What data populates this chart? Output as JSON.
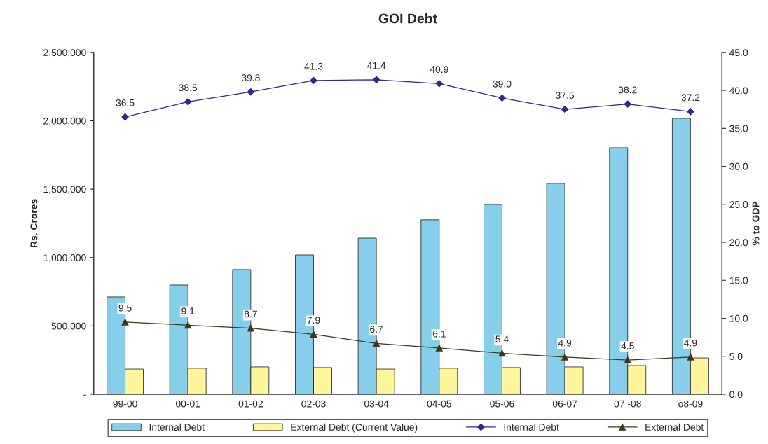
{
  "chart_data": {
    "type": "bar",
    "title": "GOI Debt",
    "ylabel": "Rs. Crores",
    "y2label": "% to GDP",
    "categories": [
      "99-00",
      "00-01",
      "01-02",
      "02-03",
      "03-04",
      "04-05",
      "05-06",
      "06-07",
      "07 -08",
      "o8-09"
    ],
    "series": [
      {
        "name": "Internal Debt",
        "color": "#87ceeb",
        "values": [
          712000,
          799000,
          912000,
          1019000,
          1142000,
          1276000,
          1388000,
          1542000,
          1803000,
          2018000
        ]
      },
      {
        "name": "External Debt (Current Value)",
        "color": "#fff59a",
        "values": [
          184000,
          190000,
          200000,
          195000,
          184000,
          190000,
          195000,
          200000,
          210000,
          266000
        ]
      },
      {
        "name": "Internal Debt",
        "type": "line",
        "axis": "y2",
        "color": "#2b2b8c",
        "marker": "diamond",
        "values": [
          36.5,
          38.5,
          39.8,
          41.3,
          41.4,
          40.9,
          39.0,
          37.5,
          38.2,
          37.2
        ],
        "value_labels": [
          "36.5",
          "38.5",
          "39.8",
          "41.3",
          "41.4",
          "40.9",
          "39.0",
          "37.5",
          "38.2",
          "37.2"
        ]
      },
      {
        "name": "External Debt",
        "type": "line",
        "axis": "y2",
        "color": "#3a3a1e",
        "marker": "triangle",
        "values": [
          9.5,
          9.1,
          8.7,
          7.9,
          6.7,
          6.1,
          5.4,
          4.9,
          4.5,
          4.9
        ],
        "value_labels": [
          "9.5",
          "9.1",
          "8.7",
          "7.9",
          "6.7",
          "6.1",
          "5.4",
          "4.9",
          "4.5",
          "4.9"
        ]
      }
    ],
    "ylim": [
      0,
      2500000
    ],
    "yticks": [
      {
        "value": 0,
        "label": "-"
      },
      {
        "value": 500000,
        "label": "500,000"
      },
      {
        "value": 1000000,
        "label": "1,000,000"
      },
      {
        "value": 1500000,
        "label": "1,500,000"
      },
      {
        "value": 2000000,
        "label": "2,000,000"
      },
      {
        "value": 2500000,
        "label": "2,500,000"
      }
    ],
    "y2lim": [
      0,
      45
    ],
    "y2ticks": [
      {
        "value": 0,
        "label": "0.0"
      },
      {
        "value": 5,
        "label": "5.0"
      },
      {
        "value": 10,
        "label": "10.0"
      },
      {
        "value": 15,
        "label": "15.0"
      },
      {
        "value": 20,
        "label": "20.0"
      },
      {
        "value": 25,
        "label": "25.0"
      },
      {
        "value": 30,
        "label": "30.0"
      },
      {
        "value": 35,
        "label": "35.0"
      },
      {
        "value": 40,
        "label": "40.0"
      },
      {
        "value": 45,
        "label": "45.0"
      }
    ],
    "grid": false,
    "legend": "bottom"
  }
}
